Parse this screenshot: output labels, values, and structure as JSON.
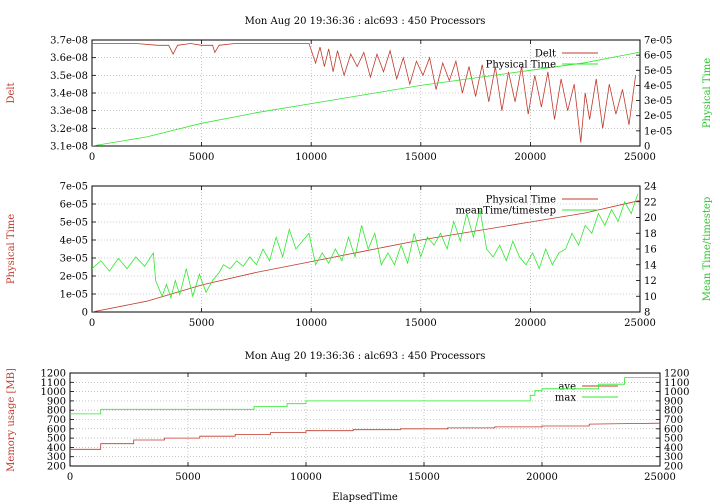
{
  "colors": {
    "red": "#c0392b",
    "green": "#2ee82e",
    "grid": "#a0a0a0",
    "axis": "#000000"
  },
  "chart_data": [
    {
      "type": "line",
      "title": "Mon Aug 20 19:36:36 : alc693 : 450 Processors",
      "xlabel": "",
      "ylabel": "Delt",
      "y2label": "Physical Time",
      "xlim": [
        0,
        25000
      ],
      "ylim": [
        3.1e-08,
        3.7e-08
      ],
      "y2lim": [
        0,
        7e-05
      ],
      "x_ticks": [
        "0",
        "5000",
        "10000",
        "15000",
        "20000",
        "25000"
      ],
      "y_ticks": [
        "3.1e-08",
        "3.2e-08",
        "3.3e-08",
        "3.4e-08",
        "3.5e-08",
        "3.6e-08",
        "3.7e-08"
      ],
      "y2_ticks": [
        "0",
        "1e-05",
        "2e-05",
        "3e-05",
        "4e-05",
        "5e-05",
        "6e-05",
        "7e-05"
      ],
      "grid": true,
      "legend_position": "top-right",
      "series": [
        {
          "name": "Delt",
          "axis": "y",
          "x": [
            0,
            1000,
            2000,
            3000,
            3500,
            3700,
            3900,
            4500,
            5000,
            5500,
            5600,
            5800,
            6500,
            7000,
            8000,
            9000,
            9900,
            10200,
            10400,
            10600,
            10800,
            11000,
            11200,
            11500,
            11800,
            12100,
            12400,
            12700,
            13000,
            13300,
            13600,
            13900,
            14200,
            14500,
            14800,
            15100,
            15400,
            15700,
            16000,
            16300,
            16600,
            16900,
            17200,
            17500,
            17800,
            18100,
            18400,
            18700,
            19000,
            19300,
            19600,
            19900,
            20200,
            20500,
            20800,
            21100,
            21400,
            21700,
            22000,
            22300,
            22500,
            22700,
            23000,
            23300,
            23600,
            23900,
            24200,
            24500,
            24800
          ],
          "values": [
            3.68e-08,
            3.68e-08,
            3.68e-08,
            3.67e-08,
            3.67e-08,
            3.62e-08,
            3.67e-08,
            3.68e-08,
            3.67e-08,
            3.67e-08,
            3.63e-08,
            3.67e-08,
            3.68e-08,
            3.68e-08,
            3.68e-08,
            3.68e-08,
            3.68e-08,
            3.57e-08,
            3.66e-08,
            3.55e-08,
            3.65e-08,
            3.52e-08,
            3.64e-08,
            3.5e-08,
            3.62e-08,
            3.55e-08,
            3.63e-08,
            3.49e-08,
            3.62e-08,
            3.52e-08,
            3.64e-08,
            3.48e-08,
            3.6e-08,
            3.45e-08,
            3.58e-08,
            3.5e-08,
            3.6e-08,
            3.42e-08,
            3.57e-08,
            3.47e-08,
            3.58e-08,
            3.4e-08,
            3.55e-08,
            3.38e-08,
            3.56e-08,
            3.35e-08,
            3.55e-08,
            3.3e-08,
            3.52e-08,
            3.35e-08,
            3.55e-08,
            3.28e-08,
            3.5e-08,
            3.32e-08,
            3.52e-08,
            3.25e-08,
            3.48e-08,
            3.3e-08,
            3.45e-08,
            3.12e-08,
            3.4e-08,
            3.25e-08,
            3.48e-08,
            3.2e-08,
            3.45e-08,
            3.28e-08,
            3.42e-08,
            3.22e-08,
            3.5e-08
          ]
        },
        {
          "name": "Physical Time",
          "axis": "y2",
          "x": [
            0,
            2500,
            5000,
            7500,
            10000,
            12500,
            15000,
            17500,
            20000,
            22500,
            25000
          ],
          "values": [
            0,
            6e-06,
            1.5e-05,
            2.2e-05,
            2.8e-05,
            3.4e-05,
            4e-05,
            4.5e-05,
            5e-05,
            5.5e-05,
            6.2e-05
          ]
        }
      ]
    },
    {
      "type": "line",
      "title": "",
      "xlabel": "",
      "ylabel": "Physical Time",
      "y2label": "Mean Time/timestep",
      "xlim": [
        0,
        25000
      ],
      "ylim": [
        0,
        7e-05
      ],
      "y2lim": [
        8,
        24
      ],
      "x_ticks": [
        "0",
        "5000",
        "10000",
        "15000",
        "20000",
        "25000"
      ],
      "y_ticks": [
        "0",
        "1e-05",
        "2e-05",
        "3e-05",
        "4e-05",
        "5e-05",
        "6e-05",
        "7e-05"
      ],
      "y2_ticks": [
        "8",
        "10",
        "12",
        "14",
        "16",
        "18",
        "20",
        "22",
        "24"
      ],
      "grid": true,
      "legend_position": "top-right",
      "series": [
        {
          "name": "Physical Time",
          "axis": "y",
          "x": [
            0,
            2500,
            5000,
            7500,
            10000,
            12500,
            15000,
            17500,
            20000,
            22500,
            25000
          ],
          "values": [
            0,
            6e-06,
            1.5e-05,
            2.2e-05,
            2.8e-05,
            3.4e-05,
            4e-05,
            4.5e-05,
            5e-05,
            5.5e-05,
            6.2e-05
          ]
        },
        {
          "name": "meanTime/timestep",
          "axis": "y2",
          "x": [
            0,
            400,
            800,
            1200,
            1600,
            2000,
            2400,
            2800,
            2900,
            3200,
            3400,
            3600,
            3800,
            4000,
            4300,
            4600,
            4900,
            5200,
            5500,
            5800,
            6000,
            6300,
            6600,
            6900,
            7200,
            7500,
            7800,
            8100,
            8400,
            8700,
            9000,
            9300,
            9600,
            9900,
            10200,
            10500,
            10800,
            11100,
            11400,
            11700,
            12000,
            12300,
            12600,
            12900,
            13200,
            13500,
            13800,
            14100,
            14400,
            14700,
            15000,
            15300,
            15600,
            15900,
            16200,
            16500,
            16800,
            17100,
            17400,
            17700,
            18000,
            18300,
            18600,
            18900,
            19200,
            19500,
            19800,
            20100,
            20400,
            20700,
            21000,
            21300,
            21600,
            21900,
            22200,
            22500,
            22800,
            23100,
            23400,
            23700,
            24000,
            24300,
            24600,
            24900
          ],
          "values": [
            13.5,
            14.5,
            13.2,
            14.8,
            13.5,
            15.0,
            13.8,
            15.5,
            12.0,
            10.0,
            11.5,
            9.8,
            12.0,
            10.2,
            13.5,
            10.0,
            12.8,
            10.5,
            12.0,
            13.0,
            14.0,
            13.5,
            14.5,
            13.8,
            15.0,
            14.0,
            16.0,
            14.5,
            17.5,
            15.0,
            18.5,
            16.0,
            17.0,
            18.0,
            14.0,
            15.5,
            14.2,
            16.0,
            14.5,
            17.5,
            15.0,
            19.0,
            16.0,
            18.0,
            14.0,
            15.5,
            14.0,
            16.5,
            14.2,
            18.0,
            15.0,
            17.5,
            16.5,
            18.0,
            16.0,
            19.5,
            17.0,
            20.5,
            17.5,
            21.0,
            16.0,
            15.0,
            16.5,
            14.5,
            17.0,
            15.0,
            14.0,
            15.5,
            13.5,
            16.0,
            14.0,
            15.5,
            16.0,
            18.0,
            16.5,
            19.0,
            18.0,
            20.5,
            19.0,
            21.0,
            19.5,
            22.0,
            20.5,
            23.0
          ]
        }
      ]
    },
    {
      "type": "line",
      "title": "Mon Aug 20 19:36:36 : alc693 : 450 Processors",
      "xlabel": "ElapsedTime",
      "ylabel": "Memory usage [MB]",
      "y2label": "",
      "xlim": [
        0,
        25000
      ],
      "ylim": [
        200,
        1200
      ],
      "y2lim": [
        200,
        1200
      ],
      "x_ticks": [
        "0",
        "5000",
        "10000",
        "15000",
        "20000",
        "25000"
      ],
      "y_ticks": [
        "200",
        "300",
        "400",
        "500",
        "600",
        "700",
        "800",
        "900",
        "1000",
        "1100",
        "1200"
      ],
      "y2_ticks": [
        "200",
        "300",
        "400",
        "500",
        "600",
        "700",
        "800",
        "900",
        "1000",
        "1100",
        "1200"
      ],
      "grid": true,
      "legend_position": "top-right",
      "series": [
        {
          "name": "ave",
          "axis": "y",
          "x": [
            0,
            1300,
            1300,
            2700,
            2700,
            4000,
            4000,
            5500,
            5500,
            7000,
            7000,
            8500,
            8500,
            10000,
            10000,
            12000,
            12000,
            14000,
            14000,
            16000,
            16000,
            18000,
            18000,
            20000,
            20000,
            22000,
            22000,
            25000
          ],
          "values": [
            380,
            380,
            440,
            440,
            480,
            480,
            500,
            500,
            520,
            520,
            540,
            540,
            560,
            560,
            580,
            580,
            590,
            590,
            600,
            600,
            610,
            610,
            620,
            620,
            630,
            630,
            650,
            660
          ]
        },
        {
          "name": "max",
          "axis": "y",
          "x": [
            0,
            1300,
            1300,
            7800,
            7800,
            9200,
            9200,
            10000,
            10000,
            19500,
            19500,
            19700,
            19700,
            20000,
            20000,
            22400,
            22400,
            23500,
            23500,
            25000
          ],
          "values": [
            760,
            760,
            810,
            810,
            840,
            840,
            870,
            870,
            900,
            900,
            960,
            960,
            1010,
            1010,
            1030,
            1030,
            1080,
            1080,
            1150,
            1150
          ]
        }
      ]
    }
  ]
}
